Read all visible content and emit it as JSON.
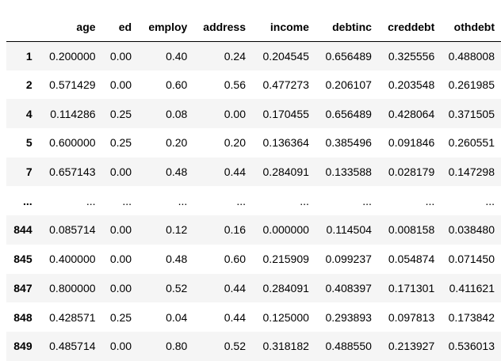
{
  "dataframe": {
    "columns": [
      "",
      "age",
      "ed",
      "employ",
      "address",
      "income",
      "debtinc",
      "creddebt",
      "othdebt"
    ],
    "rows": [
      {
        "index": "1",
        "cells": [
          "0.200000",
          "0.00",
          "0.40",
          "0.24",
          "0.204545",
          "0.656489",
          "0.325556",
          "0.488008"
        ]
      },
      {
        "index": "2",
        "cells": [
          "0.571429",
          "0.00",
          "0.60",
          "0.56",
          "0.477273",
          "0.206107",
          "0.203548",
          "0.261985"
        ]
      },
      {
        "index": "4",
        "cells": [
          "0.114286",
          "0.25",
          "0.08",
          "0.00",
          "0.170455",
          "0.656489",
          "0.428064",
          "0.371505"
        ]
      },
      {
        "index": "5",
        "cells": [
          "0.600000",
          "0.25",
          "0.20",
          "0.20",
          "0.136364",
          "0.385496",
          "0.091846",
          "0.260551"
        ]
      },
      {
        "index": "7",
        "cells": [
          "0.657143",
          "0.00",
          "0.48",
          "0.44",
          "0.284091",
          "0.133588",
          "0.028179",
          "0.147298"
        ]
      },
      {
        "index": "...",
        "cells": [
          "...",
          "...",
          "...",
          "...",
          "...",
          "...",
          "...",
          "..."
        ]
      },
      {
        "index": "844",
        "cells": [
          "0.085714",
          "0.00",
          "0.12",
          "0.16",
          "0.000000",
          "0.114504",
          "0.008158",
          "0.038480"
        ]
      },
      {
        "index": "845",
        "cells": [
          "0.400000",
          "0.00",
          "0.48",
          "0.60",
          "0.215909",
          "0.099237",
          "0.054874",
          "0.071450"
        ]
      },
      {
        "index": "847",
        "cells": [
          "0.800000",
          "0.00",
          "0.52",
          "0.44",
          "0.284091",
          "0.408397",
          "0.171301",
          "0.411621"
        ]
      },
      {
        "index": "848",
        "cells": [
          "0.428571",
          "0.25",
          "0.04",
          "0.44",
          "0.125000",
          "0.293893",
          "0.097813",
          "0.173842"
        ]
      },
      {
        "index": "849",
        "cells": [
          "0.485714",
          "0.00",
          "0.80",
          "0.52",
          "0.318182",
          "0.488550",
          "0.213927",
          "0.536013"
        ]
      }
    ]
  },
  "colors": {
    "header_border": "#000000",
    "row_stripe": "#f5f5f5",
    "background": "#ffffff",
    "text": "#000000"
  }
}
